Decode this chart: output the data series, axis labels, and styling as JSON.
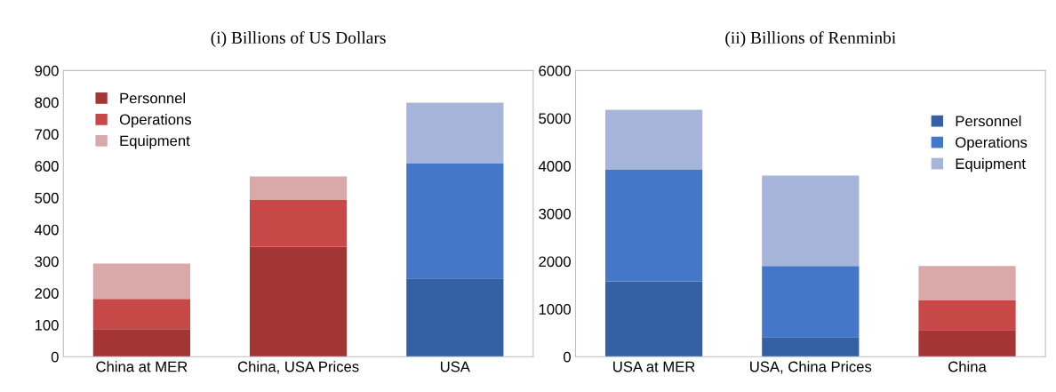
{
  "chart_data": [
    {
      "type": "bar",
      "title": "(i) Billions of US Dollars",
      "categories": [
        "China at MER",
        "China, USA Prices",
        "USA"
      ],
      "stacked": true,
      "ylim": [
        0,
        900
      ],
      "yticks": [
        0,
        100,
        200,
        300,
        400,
        500,
        600,
        700,
        800,
        900
      ],
      "grid": false,
      "legend": "top left",
      "series": [
        {
          "name": "Personnel",
          "color": "#a33535",
          "colors": [
            "#a33535",
            "#a33535",
            "#3560a3"
          ],
          "values": [
            87,
            346,
            246
          ]
        },
        {
          "name": "Operations",
          "color": "#c84848",
          "colors": [
            "#c84848",
            "#c84848",
            "#4577c8"
          ],
          "values": [
            95,
            148,
            363
          ]
        },
        {
          "name": "Equipment",
          "color": "#d9a8a8",
          "colors": [
            "#d9a8a8",
            "#d9a8a8",
            "#a8b5da"
          ],
          "values": [
            111,
            73,
            190
          ]
        }
      ]
    },
    {
      "type": "bar",
      "title": "(ii) Billions of Renminbi",
      "categories": [
        "USA at MER",
        "USA, China Prices",
        "China"
      ],
      "stacked": true,
      "ylim": [
        0,
        6000
      ],
      "yticks": [
        0,
        1000,
        2000,
        3000,
        4000,
        5000,
        6000
      ],
      "grid": false,
      "legend": "top right",
      "series": [
        {
          "name": "Personnel",
          "color": "#3560a3",
          "colors": [
            "#3560a3",
            "#3560a3",
            "#a33535"
          ],
          "values": [
            1580,
            410,
            560
          ]
        },
        {
          "name": "Operations",
          "color": "#4577c8",
          "colors": [
            "#4577c8",
            "#4577c8",
            "#c84848"
          ],
          "values": [
            2350,
            1490,
            630
          ]
        },
        {
          "name": "Equipment",
          "color": "#a8b5da",
          "colors": [
            "#a8b5da",
            "#a8b5da",
            "#d9a8a8"
          ],
          "values": [
            1250,
            1900,
            710
          ]
        }
      ]
    }
  ]
}
